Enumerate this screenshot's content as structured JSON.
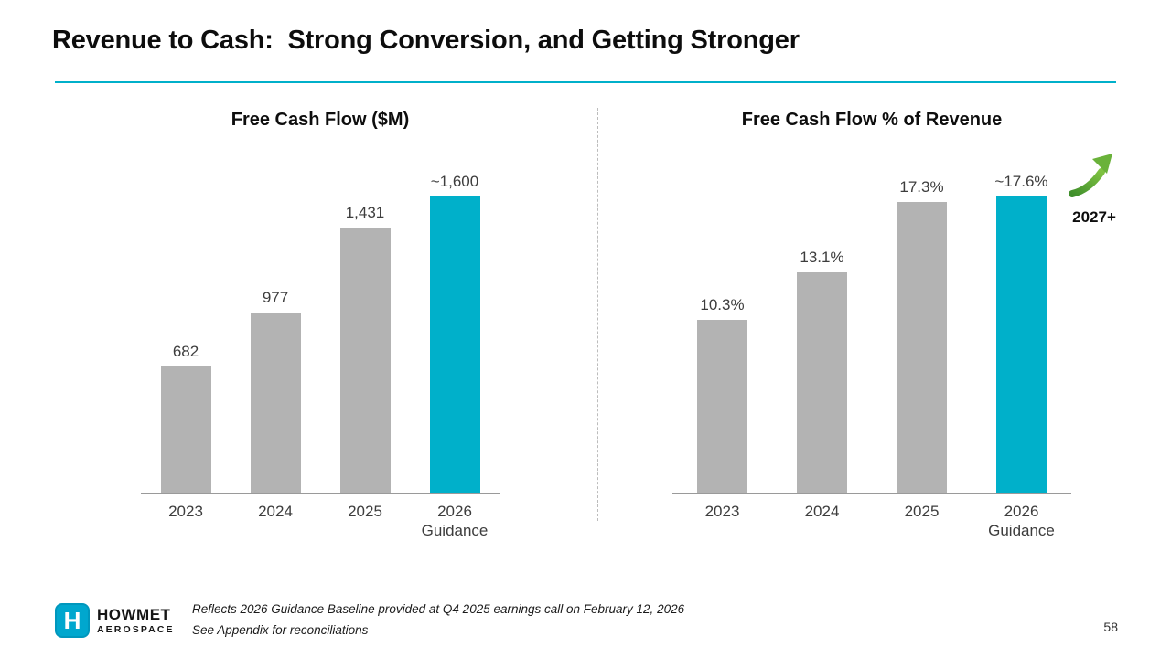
{
  "slide": {
    "title": "Revenue to Cash:  Strong Conversion, and Getting Stronger",
    "page_number": "58"
  },
  "colors": {
    "accent": "#00b0ca",
    "bar_gray": "#b3b3b3",
    "arrow_green": "#5aaa2f"
  },
  "annotation_2027": "2027+",
  "footer": {
    "logo_letter": "H",
    "logo_line1": "HOWMET",
    "logo_line2": "AEROSPACE",
    "note1": "Reflects 2026 Guidance Baseline provided at Q4 2025 earnings call on February 12, 2026",
    "note2": "See Appendix for reconciliations"
  },
  "chart_data": [
    {
      "type": "bar",
      "title": "Free Cash Flow ($M)",
      "categories": [
        "2023",
        "2024",
        "2025",
        "2026"
      ],
      "last_category_subline": "Guidance",
      "values": [
        682,
        977,
        1431,
        1600
      ],
      "value_labels": [
        "682",
        "977",
        "1,431",
        "~1,600"
      ],
      "bar_colors": [
        "gray",
        "gray",
        "gray",
        "accent"
      ],
      "xlabel": "",
      "ylabel": "",
      "ylim": [
        0,
        1700
      ],
      "grid": false,
      "legend": false
    },
    {
      "type": "bar",
      "title": "Free Cash Flow % of Revenue",
      "categories": [
        "2023",
        "2024",
        "2025",
        "2026"
      ],
      "last_category_subline": "Guidance",
      "values": [
        10.3,
        13.1,
        17.3,
        17.6
      ],
      "value_labels": [
        "10.3%",
        "13.1%",
        "17.3%",
        "~17.6%"
      ],
      "bar_colors": [
        "gray",
        "gray",
        "gray",
        "accent"
      ],
      "xlabel": "",
      "ylabel": "",
      "ylim": [
        0,
        19
      ],
      "grid": false,
      "legend": false
    }
  ]
}
